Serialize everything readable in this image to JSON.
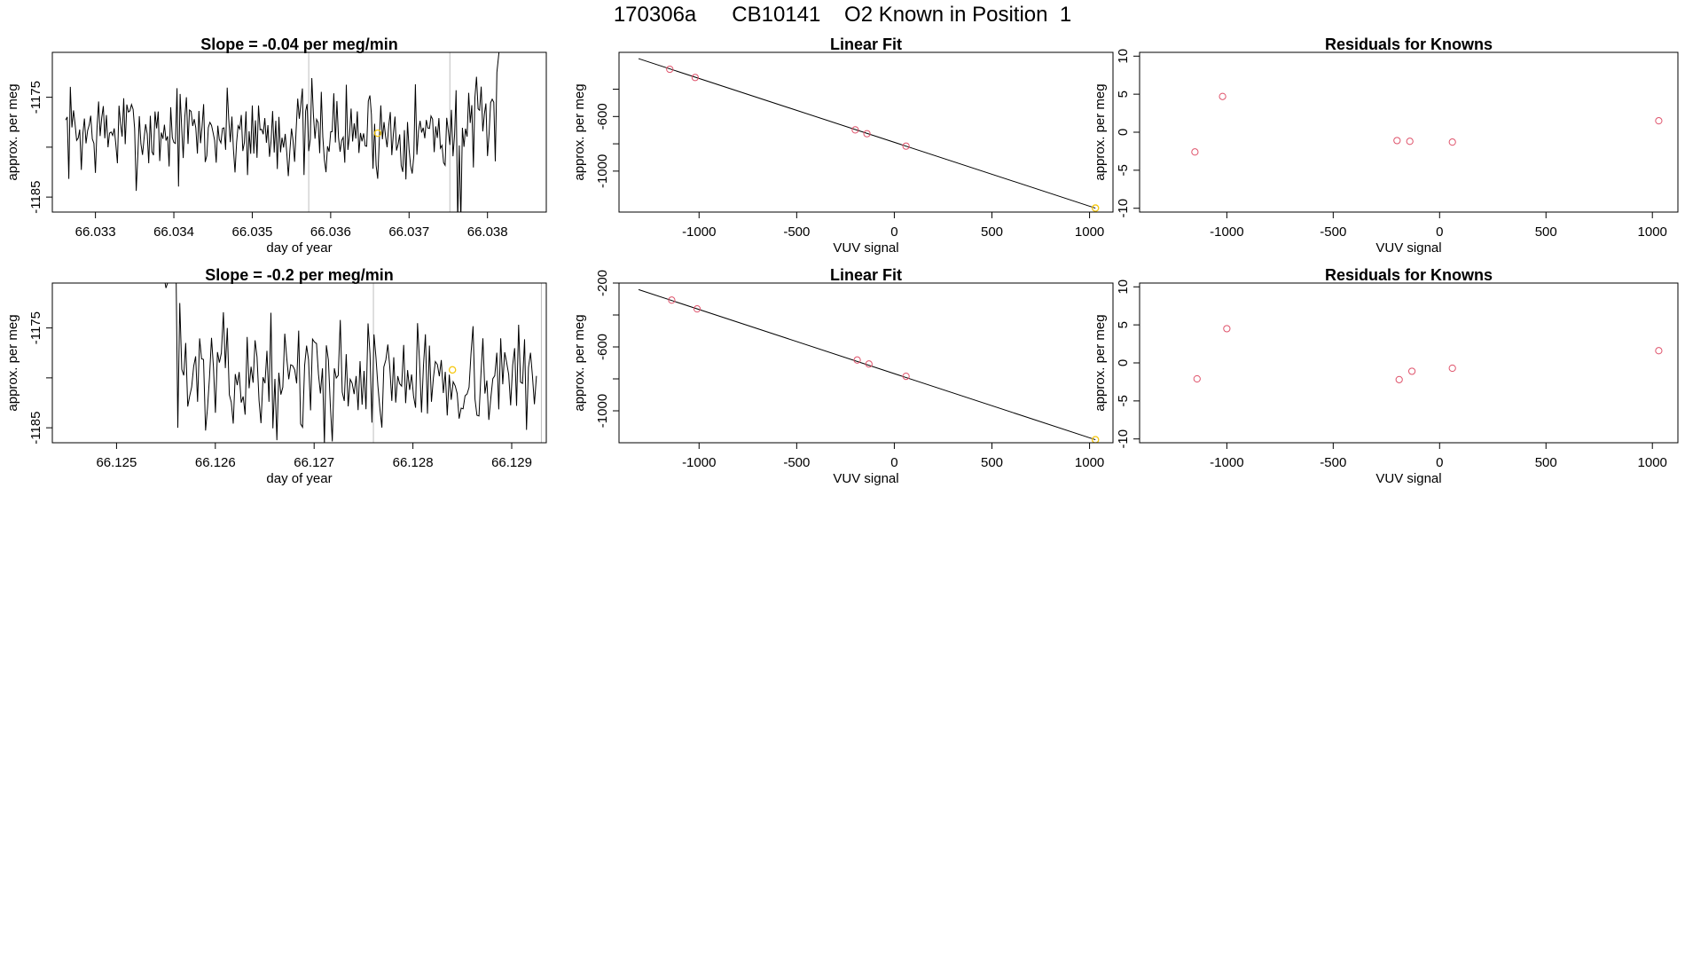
{
  "page_title": "170306a      CB10141    O2 Known in Position  1",
  "colors": {
    "line": "#000000",
    "point": "#df536b",
    "highlight": "#f5c710",
    "vline": "#bebebe",
    "axis": "#000000"
  },
  "chart_data": [
    {
      "id": "ts1",
      "type": "line",
      "title": "Slope =  -0.04  per meg/min",
      "xlabel": "day of year",
      "ylabel": "approx. per meg",
      "xlim": [
        66.03245,
        66.03875
      ],
      "ylim": [
        -1186.5,
        -1170.5
      ],
      "xticks": [
        66.033,
        66.034,
        66.035,
        66.036,
        66.037,
        66.038
      ],
      "xtick_labels": [
        "66.033",
        "66.034",
        "66.035",
        "66.036",
        "66.037",
        "66.038"
      ],
      "yticks": [
        -1185,
        -1180,
        -1175,
        -1170
      ],
      "ytick_labels": [
        "-1185",
        "",
        "-1175",
        ""
      ],
      "vlines": [
        66.03572,
        66.03752
      ],
      "series": {
        "x0": 66.03262,
        "x1": 66.03812,
        "seed": 7,
        "base": -1178.5,
        "amp": 2.3,
        "events": [
          {
            "x": 66.03762,
            "y": -1187.5
          },
          {
            "x": 66.03766,
            "y": -1187.5
          },
          {
            "x": 66.03808,
            "y": -1175.5
          },
          {
            "x": 66.03812,
            "y": -1172.5
          },
          {
            "x": 66.03816,
            "y": -1169.5
          },
          {
            "x": 66.0382,
            "y": -1167.0
          }
        ]
      },
      "highlight_point": {
        "x": 66.0366,
        "y": -1178.6
      }
    },
    {
      "id": "fit1",
      "type": "scatter",
      "title": "Linear Fit",
      "xlabel": "VUV signal",
      "ylabel": "approx. per meg",
      "xlim": [
        -1410,
        1120
      ],
      "ylim": [
        -1300,
        -130
      ],
      "xticks": [
        -1000,
        -500,
        0,
        500,
        1000
      ],
      "xtick_labels": [
        "-1000",
        "-500",
        "0",
        "500",
        "1000"
      ],
      "yticks": [
        -1000,
        -800,
        -600,
        -400
      ],
      "ytick_labels": [
        "-1000",
        "",
        "-600",
        ""
      ],
      "fit_line": {
        "x": [
          -1310,
          1030
        ],
        "y": [
          -176,
          -1271
        ]
      },
      "points": [
        {
          "x": -1150,
          "y": -254
        },
        {
          "x": -1020,
          "y": -314
        },
        {
          "x": -200,
          "y": -698
        },
        {
          "x": -140,
          "y": -726
        },
        {
          "x": 60,
          "y": -817
        }
      ],
      "highlight_point": {
        "x": 1030,
        "y": -1271
      }
    },
    {
      "id": "res1",
      "type": "scatter",
      "title": "Residuals for Knowns",
      "xlabel": "VUV signal",
      "ylabel": "approx. per meg",
      "xlim": [
        -1410,
        1120
      ],
      "ylim": [
        -10.5,
        10.5
      ],
      "xticks": [
        -1000,
        -500,
        0,
        500,
        1000
      ],
      "xtick_labels": [
        "-1000",
        "-500",
        "0",
        "500",
        "1000"
      ],
      "yticks": [
        -10,
        -5,
        0,
        5,
        10
      ],
      "ytick_labels": [
        "-10",
        "-5",
        "0",
        "5",
        "10"
      ],
      "points": [
        {
          "x": -1150,
          "y": -2.6
        },
        {
          "x": -1020,
          "y": 4.7
        },
        {
          "x": -200,
          "y": -1.1
        },
        {
          "x": -140,
          "y": -1.2
        },
        {
          "x": 60,
          "y": -1.3
        },
        {
          "x": 1030,
          "y": 1.5
        }
      ]
    },
    {
      "id": "ts2",
      "type": "line",
      "title": "Slope =  -0.2  per meg/min",
      "xlabel": "day of year",
      "ylabel": "approx. per meg",
      "xlim": [
        66.12435,
        66.12935
      ],
      "ylim": [
        -1186.5,
        -1170.5
      ],
      "xticks": [
        66.125,
        66.126,
        66.127,
        66.128,
        66.129
      ],
      "xtick_labels": [
        "66.125",
        "66.126",
        "66.127",
        "66.128",
        "66.129"
      ],
      "yticks": [
        -1185,
        -1180,
        -1175,
        -1170
      ],
      "ytick_labels": [
        "-1185",
        "",
        "-1175",
        ""
      ],
      "vlines": [
        66.1276,
        66.1293
      ],
      "series": {
        "x0": 66.1256,
        "x1": 66.12925,
        "seed": 13,
        "base": -1180.0,
        "amp": 2.6,
        "events": [
          {
            "x": 66.12545,
            "y": -1168.0
          },
          {
            "x": 66.1255,
            "y": -1171.0
          },
          {
            "x": 66.12555,
            "y": -1169.5
          },
          {
            "x": 66.1256,
            "y": -1167.5
          },
          {
            "x": 66.12565,
            "y": -1172.5
          },
          {
            "x": 66.1257,
            "y": -1176.5
          }
        ]
      },
      "highlight_point": {
        "x": 66.1284,
        "y": -1179.2
      }
    },
    {
      "id": "fit2",
      "type": "scatter",
      "title": "Linear Fit",
      "xlabel": "VUV signal",
      "ylabel": "approx. per meg",
      "xlim": [
        -1410,
        1120
      ],
      "ylim": [
        -1200,
        -200
      ],
      "xticks": [
        -1000,
        -500,
        0,
        500,
        1000
      ],
      "xtick_labels": [
        "-1000",
        "-500",
        "0",
        "500",
        "1000"
      ],
      "yticks": [
        -1000,
        -800,
        -600,
        -400,
        -200
      ],
      "ytick_labels": [
        "-1000",
        "",
        "-600",
        "",
        "-200"
      ],
      "fit_line": {
        "x": [
          -1310,
          1030
        ],
        "y": [
          -241,
          -1181
        ]
      },
      "points": [
        {
          "x": -1140,
          "y": -307
        },
        {
          "x": -1010,
          "y": -362
        },
        {
          "x": -190,
          "y": -682
        },
        {
          "x": -130,
          "y": -707
        },
        {
          "x": 60,
          "y": -784
        }
      ],
      "highlight_point": {
        "x": 1030,
        "y": -1181
      }
    },
    {
      "id": "res2",
      "type": "scatter",
      "title": "Residuals for Knowns",
      "xlabel": "VUV signal",
      "ylabel": "approx. per meg",
      "xlim": [
        -1410,
        1120
      ],
      "ylim": [
        -10.5,
        10.5
      ],
      "xticks": [
        -1000,
        -500,
        0,
        500,
        1000
      ],
      "xtick_labels": [
        "-1000",
        "-500",
        "0",
        "500",
        "1000"
      ],
      "yticks": [
        -10,
        -5,
        0,
        5,
        10
      ],
      "ytick_labels": [
        "-10",
        "-5",
        "0",
        "5",
        "10"
      ],
      "points": [
        {
          "x": -1140,
          "y": -2.1
        },
        {
          "x": -1000,
          "y": 4.5
        },
        {
          "x": -190,
          "y": -2.2
        },
        {
          "x": -130,
          "y": -1.1
        },
        {
          "x": 60,
          "y": -0.7
        },
        {
          "x": 1030,
          "y": 1.6
        }
      ]
    }
  ]
}
